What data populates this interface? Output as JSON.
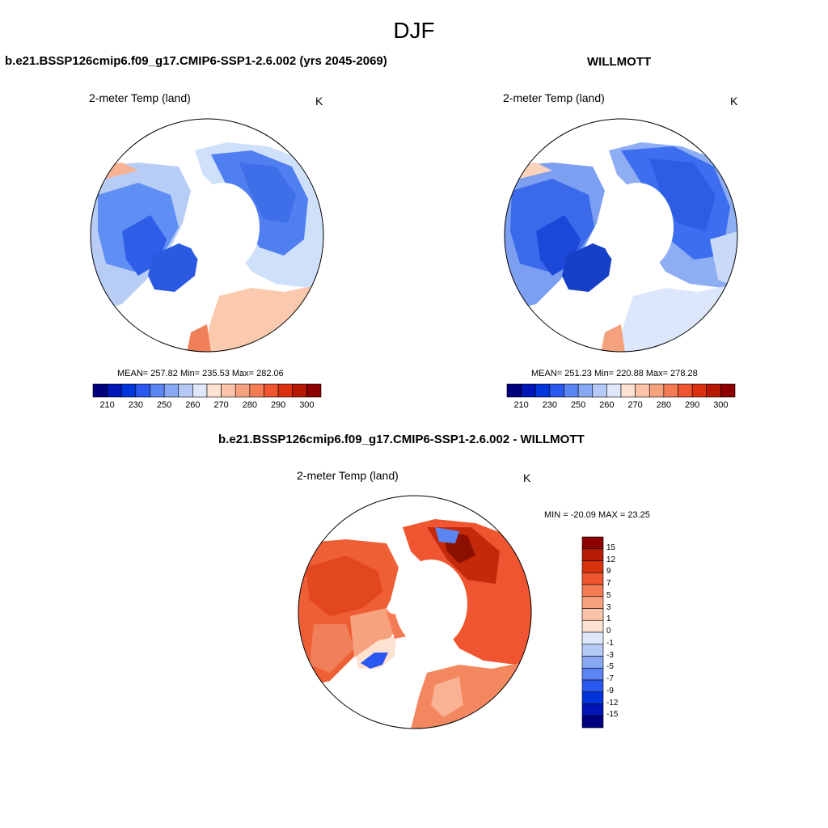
{
  "title": "DJF",
  "panels": [
    {
      "heading": "b.e21.BSSP126cmip6.f09_g17.CMIP6-SSP1-2.6.002 (yrs 2045-2069)",
      "variable": "2-meter Temp (land)",
      "units": "K",
      "stats": "MEAN= 257.82  Min= 235.53  Max= 282.06"
    },
    {
      "heading": "WILLMOTT",
      "variable": "2-meter Temp (land)",
      "units": "K",
      "stats": "MEAN= 251.23  Min= 220.88  Max= 278.28"
    },
    {
      "heading": "b.e21.BSSP126cmip6.f09_g17.CMIP6-SSP1-2.6.002 - WILLMOTT",
      "variable": "2-meter Temp (land)",
      "units": "K",
      "stats": "MIN = -20.09 MAX =  23.25"
    }
  ],
  "abs_colorbar": {
    "colors": [
      "#00007f",
      "#0016b6",
      "#0035d9",
      "#2a58f0",
      "#5c85f4",
      "#88a8f4",
      "#b4c9f5",
      "#dfe8fb",
      "#fde2d2",
      "#fbc4a8",
      "#f7a27f",
      "#f47c55",
      "#ee5530",
      "#d93010",
      "#b71705",
      "#8c0000"
    ],
    "tick_labels": [
      "210",
      "230",
      "250",
      "260",
      "270",
      "280",
      "290",
      "300"
    ]
  },
  "diff_colorbar": {
    "colors": [
      "#8c0000",
      "#b51a04",
      "#d8320d",
      "#ee5530",
      "#f47c55",
      "#f7a27f",
      "#fbc4a8",
      "#fde2d2",
      "#dfe8fb",
      "#b4c9f5",
      "#88a8f4",
      "#5c85f4",
      "#2a58f0",
      "#0035d9",
      "#0016b6",
      "#00007f"
    ],
    "tick_labels": [
      "15",
      "12",
      "9",
      "7",
      "5",
      "3",
      "1",
      "0",
      "-1",
      "-3",
      "-5",
      "-7",
      "-9",
      "-12",
      "-15"
    ]
  }
}
